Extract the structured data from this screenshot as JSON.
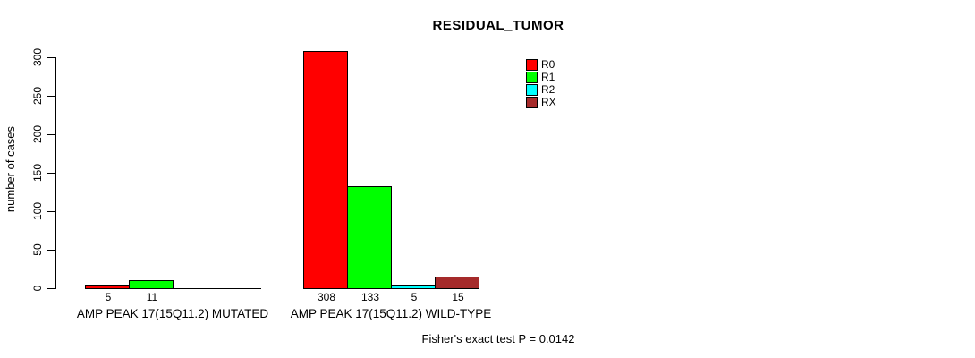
{
  "chart_data": {
    "type": "bar",
    "title": "RESIDUAL_TUMOR",
    "xlabel": "",
    "ylabel": "number of cases",
    "ylim": [
      0,
      300
    ],
    "yticks": [
      0,
      50,
      100,
      150,
      200,
      250,
      300
    ],
    "grid": false,
    "legend_position": "top-right",
    "categories": [
      "AMP PEAK 17(15Q11.2) MUTATED",
      "AMP PEAK 17(15Q11.2) WILD-TYPE"
    ],
    "series": [
      {
        "name": "R0",
        "color": "#FF0000",
        "values": [
          5,
          308
        ]
      },
      {
        "name": "R1",
        "color": "#00FF00",
        "values": [
          11,
          133
        ]
      },
      {
        "name": "R2",
        "color": "#00FFFF",
        "values": [
          0,
          5
        ]
      },
      {
        "name": "RX",
        "color": "#A52A2A",
        "values": [
          0,
          15
        ]
      }
    ],
    "bar_value_labels": [
      [
        "5",
        "11",
        null,
        null
      ],
      [
        "308",
        "133",
        "5",
        "15"
      ]
    ],
    "annotation": "Fisher's exact test P = 0.0142"
  }
}
